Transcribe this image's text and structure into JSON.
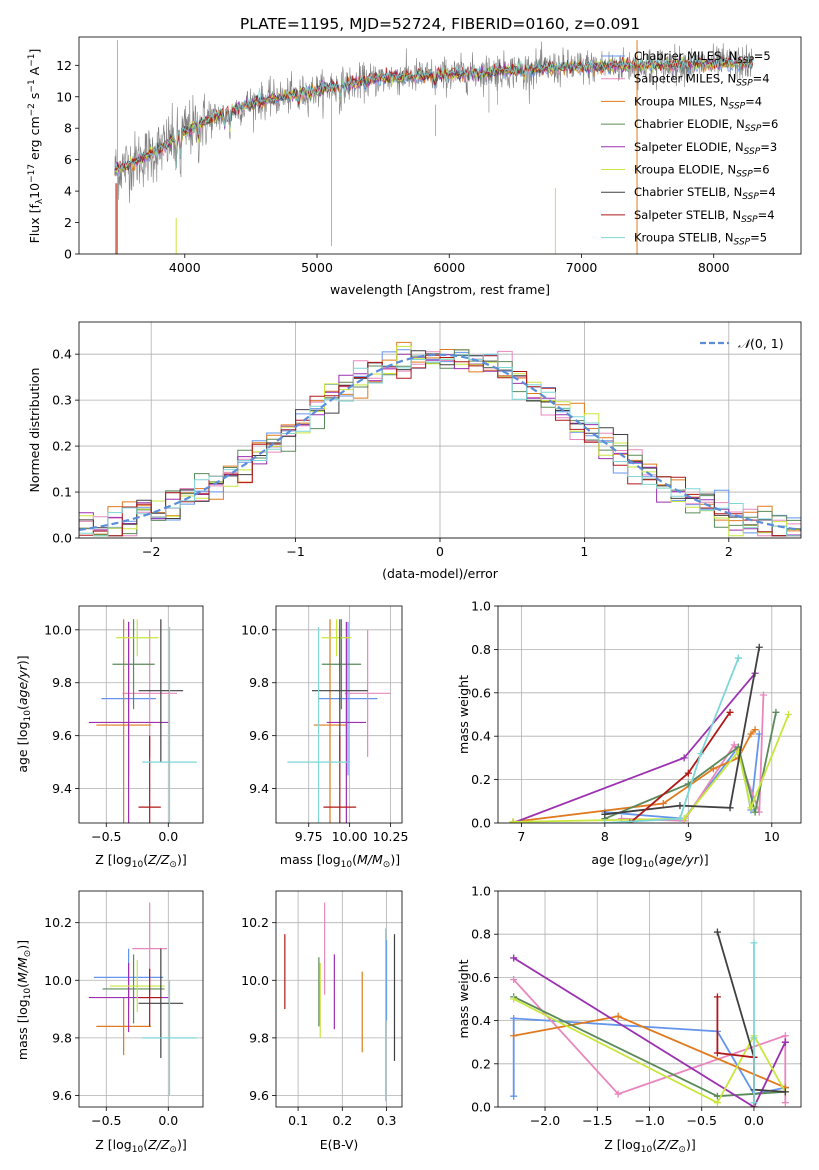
{
  "figure_title": "PLATE=1195, MJD=52724, FIBERID=0160, z=0.091",
  "colors": {
    "spectrum_data": "#808080",
    "Chabrier MILES": "#6495ED",
    "Salpeter MILES": "#E887BD",
    "Kroupa MILES": "#E07A1F",
    "Chabrier ELODIE": "#5A8A5A",
    "Salpeter ELODIE": "#9B30B0",
    "Kroupa ELODIE": "#C8E63C",
    "Chabrier STELIB": "#404040",
    "Salpeter STELIB": "#B01818",
    "Kroupa STELIB": "#7FD6D6",
    "normal_curve": "#5B8DD9"
  },
  "chart_data": [
    {
      "id": "spectrum",
      "type": "line",
      "title": "PLATE=1195, MJD=52724, FIBERID=0160, z=0.091",
      "xlabel": "wavelength [Angstrom, rest frame]",
      "ylabel": "Flux [f_λ 10^-17 erg cm^-2 s^-1 A^-1]",
      "xlim": [
        3200,
        8660
      ],
      "ylim": [
        0,
        13.8
      ],
      "xticks": [
        4000,
        5000,
        6000,
        7000,
        8000
      ],
      "yticks": [
        0,
        2,
        4,
        6,
        8,
        10,
        12
      ],
      "legend_position": "top-right",
      "continuum": {
        "x": [
          3470,
          3600,
          3800,
          4000,
          4200,
          4500,
          5000,
          5500,
          6000,
          6500,
          7000,
          7500,
          8000,
          8300
        ],
        "y": [
          5.3,
          5.8,
          6.6,
          7.8,
          8.6,
          9.6,
          10.4,
          11.2,
          11.4,
          11.7,
          11.9,
          12.0,
          12.1,
          12.1
        ]
      },
      "series": [
        {
          "name": "Chabrier MILES",
          "nssp": "5"
        },
        {
          "name": "Salpeter MILES",
          "nssp": "4"
        },
        {
          "name": "Kroupa MILES",
          "nssp": "4"
        },
        {
          "name": "Chabrier ELODIE",
          "nssp": "6"
        },
        {
          "name": "Salpeter ELODIE",
          "nssp": "3"
        },
        {
          "name": "Kroupa ELODIE",
          "nssp": "6"
        },
        {
          "name": "Chabrier STELIB",
          "nssp": "4"
        },
        {
          "name": "Salpeter STELIB",
          "nssp": "4"
        },
        {
          "name": "Kroupa STELIB",
          "nssp": "5"
        }
      ]
    },
    {
      "id": "residuals",
      "type": "line",
      "xlabel": "(data-model)/error",
      "ylabel": "Normed distribution",
      "xlim": [
        -2.5,
        2.5
      ],
      "ylim": [
        0,
        0.47
      ],
      "xticks": [
        -2,
        -1,
        0,
        1,
        2
      ],
      "yticks": [
        0.0,
        0.1,
        0.2,
        0.3,
        0.4
      ],
      "legend": "N(0,1)",
      "legend_position": "top-right",
      "grid": true,
      "histogram_bin_width": 0.1
    },
    {
      "id": "age_vs_Z",
      "type": "scatter",
      "xlabel": "Z [log10(Z/Z☉)]",
      "ylabel": "age [log10(age/yr)]",
      "xlim": [
        -0.72,
        0.28
      ],
      "ylim": [
        9.27,
        10.09
      ],
      "xticks": [
        -0.5,
        0.0
      ],
      "yticks": [
        9.4,
        9.6,
        9.8,
        10.0
      ],
      "grid": true,
      "points": [
        {
          "series": "Chabrier MILES",
          "x": -0.32,
          "y": 9.74,
          "xerr": 0.22,
          "yerr": 0.29
        },
        {
          "series": "Salpeter MILES",
          "x": -0.15,
          "y": 9.76,
          "xerr": 0.22,
          "yerr": 0.24
        },
        {
          "series": "Kroupa MILES",
          "x": -0.36,
          "y": 9.64,
          "xerr": 0.22,
          "yerr": 0.4
        },
        {
          "series": "Chabrier ELODIE",
          "x": -0.28,
          "y": 9.87,
          "xerr": 0.17,
          "yerr": 0.17
        },
        {
          "series": "Salpeter ELODIE",
          "x": -0.32,
          "y": 9.65,
          "xerr": 0.32,
          "yerr": 0.38
        },
        {
          "series": "Kroupa ELODIE",
          "x": -0.25,
          "y": 9.97,
          "xerr": 0.17,
          "yerr": 0.07
        },
        {
          "series": "Chabrier STELIB",
          "x": -0.06,
          "y": 9.77,
          "xerr": 0.18,
          "yerr": 0.27
        },
        {
          "series": "Salpeter STELIB",
          "x": -0.15,
          "y": 9.33,
          "xerr": 0.09,
          "yerr": 0.27
        },
        {
          "series": "Kroupa STELIB",
          "x": 0.01,
          "y": 9.5,
          "xerr": 0.22,
          "yerr": 0.51
        }
      ]
    },
    {
      "id": "age_vs_mass",
      "type": "scatter",
      "xlabel": "mass [log10(M/M☉)]",
      "ylabel": "",
      "xlim": [
        9.55,
        10.32
      ],
      "ylim": [
        9.27,
        10.09
      ],
      "xticks": [
        9.75,
        10.0,
        10.25
      ],
      "yticks": [
        9.4,
        9.6,
        9.8,
        10.0
      ],
      "grid": true,
      "points": [
        {
          "series": "Chabrier MILES",
          "x": 9.99,
          "y": 9.74,
          "xerr": 0.18,
          "yerr": 0.29
        },
        {
          "series": "Salpeter MILES",
          "x": 10.11,
          "y": 9.76,
          "xerr": 0.14,
          "yerr": 0.24
        },
        {
          "series": "Kroupa MILES",
          "x": 9.88,
          "y": 9.64,
          "xerr": 0.1,
          "yerr": 0.4
        },
        {
          "series": "Chabrier ELODIE",
          "x": 9.95,
          "y": 9.87,
          "xerr": 0.12,
          "yerr": 0.17
        },
        {
          "series": "Salpeter ELODIE",
          "x": 9.98,
          "y": 9.65,
          "xerr": 0.12,
          "yerr": 0.38
        },
        {
          "series": "Kroupa ELODIE",
          "x": 9.92,
          "y": 9.97,
          "xerr": 0.09,
          "yerr": 0.07
        },
        {
          "series": "Chabrier STELIB",
          "x": 9.94,
          "y": 9.77,
          "xerr": 0.17,
          "yerr": 0.27
        },
        {
          "series": "Salpeter STELIB",
          "x": 9.94,
          "y": 9.33,
          "xerr": 0.1,
          "yerr": 0.27
        },
        {
          "series": "Kroupa STELIB",
          "x": 9.81,
          "y": 9.5,
          "xerr": 0.19,
          "yerr": 0.51
        }
      ]
    },
    {
      "id": "mass_weight_vs_age",
      "type": "line",
      "xlabel": "age [log10(age/yr)]",
      "ylabel": "mass weight",
      "xlim": [
        6.72,
        10.35
      ],
      "ylim": [
        0,
        1.0
      ],
      "xticks": [
        7,
        8,
        9,
        10
      ],
      "yticks": [
        0.0,
        0.2,
        0.4,
        0.6,
        0.8,
        1.0
      ],
      "grid": true,
      "series": [
        {
          "name": "Chabrier MILES",
          "x": [
            8.0,
            8.95,
            9.6,
            9.75,
            9.85
          ],
          "y": [
            0.05,
            0.02,
            0.35,
            0.06,
            0.41
          ]
        },
        {
          "name": "Salpeter MILES",
          "x": [
            8.2,
            8.95,
            9.55,
            9.85,
            9.9
          ],
          "y": [
            0.02,
            0.01,
            0.36,
            0.05,
            0.59
          ]
        },
        {
          "name": "Kroupa MILES",
          "x": [
            6.9,
            8.7,
            9.3,
            9.6,
            9.75,
            9.8
          ],
          "y": [
            0.005,
            0.09,
            0.25,
            0.3,
            0.41,
            0.43
          ]
        },
        {
          "name": "Chabrier ELODIE",
          "x": [
            8.0,
            9.0,
            9.6,
            9.8,
            10.05
          ],
          "y": [
            0.02,
            0.18,
            0.35,
            0.05,
            0.51
          ]
        },
        {
          "name": "Salpeter ELODIE",
          "x": [
            6.9,
            8.95,
            9.8
          ],
          "y": [
            0.0,
            0.3,
            0.69
          ]
        },
        {
          "name": "Kroupa ELODIE",
          "x": [
            6.9,
            8.95,
            9.6,
            9.75,
            10.2
          ],
          "y": [
            0.005,
            0.02,
            0.33,
            0.07,
            0.5
          ]
        },
        {
          "name": "Chabrier STELIB",
          "x": [
            8.0,
            8.9,
            9.5,
            9.85
          ],
          "y": [
            0.04,
            0.08,
            0.07,
            0.81
          ]
        },
        {
          "name": "Salpeter STELIB",
          "x": [
            8.3,
            9.0,
            9.5
          ],
          "y": [
            0.0,
            0.23,
            0.51
          ]
        },
        {
          "name": "Kroupa STELIB",
          "x": [
            8.0,
            8.9,
            9.15,
            9.6,
            9.6
          ],
          "y": [
            0.0,
            0.02,
            0.32,
            0.76,
            0.76
          ]
        }
      ]
    },
    {
      "id": "mass_vs_Z",
      "type": "scatter",
      "xlabel": "Z [log10(Z/Z☉)]",
      "ylabel": "mass [log10(M/M☉)]",
      "xlim": [
        -0.72,
        0.28
      ],
      "ylim": [
        9.56,
        10.31
      ],
      "xticks": [
        -0.5,
        0.0
      ],
      "yticks": [
        9.6,
        9.8,
        10.0,
        10.2
      ],
      "grid": true,
      "points": [
        {
          "series": "Chabrier MILES",
          "x": -0.32,
          "y": 10.01,
          "xerr": 0.28,
          "yerr": 0.1
        },
        {
          "series": "Salpeter MILES",
          "x": -0.15,
          "y": 10.11,
          "xerr": 0.14,
          "yerr": 0.16
        },
        {
          "series": "Kroupa MILES",
          "x": -0.36,
          "y": 9.84,
          "xerr": 0.22,
          "yerr": 0.1
        },
        {
          "series": "Chabrier ELODIE",
          "x": -0.28,
          "y": 9.97,
          "xerr": 0.25,
          "yerr": 0.12
        },
        {
          "series": "Salpeter ELODIE",
          "x": -0.32,
          "y": 9.94,
          "xerr": 0.32,
          "yerr": 0.12
        },
        {
          "series": "Kroupa ELODIE",
          "x": -0.25,
          "y": 9.98,
          "xerr": 0.22,
          "yerr": 0.09
        },
        {
          "series": "Chabrier STELIB",
          "x": -0.06,
          "y": 9.92,
          "xerr": 0.18,
          "yerr": 0.19
        },
        {
          "series": "Salpeter STELIB",
          "x": -0.15,
          "y": 9.94,
          "xerr": 0.09,
          "yerr": 0.1
        },
        {
          "series": "Kroupa STELIB",
          "x": 0.01,
          "y": 9.8,
          "xerr": 0.22,
          "yerr": 0.2
        }
      ]
    },
    {
      "id": "mass_vs_ebv",
      "type": "scatter",
      "xlabel": "E(B-V)",
      "ylabel": "",
      "xlim": [
        0.05,
        0.335
      ],
      "ylim": [
        9.56,
        10.31
      ],
      "xticks": [
        0.1,
        0.2,
        0.3
      ],
      "yticks": [
        9.6,
        9.8,
        10.0,
        10.2
      ],
      "grid": true,
      "points": [
        {
          "series": "Chabrier MILES",
          "x": 0.3,
          "y": 10.0,
          "yerr": 0.14
        },
        {
          "series": "Salpeter MILES",
          "x": 0.16,
          "y": 10.11,
          "yerr": 0.16
        },
        {
          "series": "Kroupa MILES",
          "x": 0.245,
          "y": 9.89,
          "yerr": 0.14
        },
        {
          "series": "Chabrier ELODIE",
          "x": 0.147,
          "y": 9.96,
          "yerr": 0.12
        },
        {
          "series": "Salpeter ELODIE",
          "x": 0.182,
          "y": 9.96,
          "yerr": 0.13
        },
        {
          "series": "Kroupa ELODIE",
          "x": 0.15,
          "y": 9.93,
          "yerr": 0.13
        },
        {
          "series": "Chabrier STELIB",
          "x": 0.318,
          "y": 9.94,
          "yerr": 0.22
        },
        {
          "series": "Salpeter STELIB",
          "x": 0.07,
          "y": 10.03,
          "yerr": 0.13
        },
        {
          "series": "Kroupa STELIB",
          "x": 0.298,
          "y": 9.88,
          "yerr": 0.3
        }
      ]
    },
    {
      "id": "mass_weight_vs_Z",
      "type": "line",
      "xlabel": "Z [log10(Z/Z☉)]",
      "ylabel": "mass weight",
      "xlim": [
        -2.45,
        0.45
      ],
      "ylim": [
        0,
        1.0
      ],
      "xticks": [
        -2.0,
        -1.5,
        -1.0,
        -0.5,
        0.0
      ],
      "yticks": [
        0.0,
        0.2,
        0.4,
        0.6,
        0.8,
        1.0
      ],
      "grid": true,
      "series": [
        {
          "name": "Chabrier MILES",
          "x": [
            -2.3,
            -2.3,
            -0.35,
            0.0,
            0.3
          ],
          "y": [
            0.05,
            0.41,
            0.35,
            0.06,
            0.09
          ]
        },
        {
          "name": "Salpeter MILES",
          "x": [
            -2.3,
            -1.3,
            0.3,
            0.3
          ],
          "y": [
            0.59,
            0.06,
            0.33,
            0.02
          ]
        },
        {
          "name": "Kroupa MILES",
          "x": [
            -2.3,
            -1.3,
            0.3,
            0.3
          ],
          "y": [
            0.33,
            0.42,
            0.09,
            0.09
          ]
        },
        {
          "name": "Chabrier ELODIE",
          "x": [
            -2.3,
            -0.35,
            0.3
          ],
          "y": [
            0.51,
            0.05,
            0.07
          ]
        },
        {
          "name": "Salpeter ELODIE",
          "x": [
            -2.3,
            0.0,
            0.3,
            0.3
          ],
          "y": [
            0.69,
            0.0,
            0.3,
            0.3
          ]
        },
        {
          "name": "Kroupa ELODIE",
          "x": [
            -2.3,
            -0.35,
            0.0,
            0.3
          ],
          "y": [
            0.5,
            0.02,
            0.33,
            0.07
          ]
        },
        {
          "name": "Chabrier STELIB",
          "x": [
            -0.35,
            0.0,
            0.0,
            0.3
          ],
          "y": [
            0.81,
            0.23,
            0.08,
            0.07
          ]
        },
        {
          "name": "Salpeter STELIB",
          "x": [
            -0.35,
            -0.35,
            0.0,
            0.0
          ],
          "y": [
            0.51,
            0.25,
            0.23,
            0.0
          ]
        },
        {
          "name": "Kroupa STELIB",
          "x": [
            0.0,
            0.0,
            0.0
          ],
          "y": [
            0.76,
            0.32,
            0.02
          ]
        }
      ]
    }
  ]
}
